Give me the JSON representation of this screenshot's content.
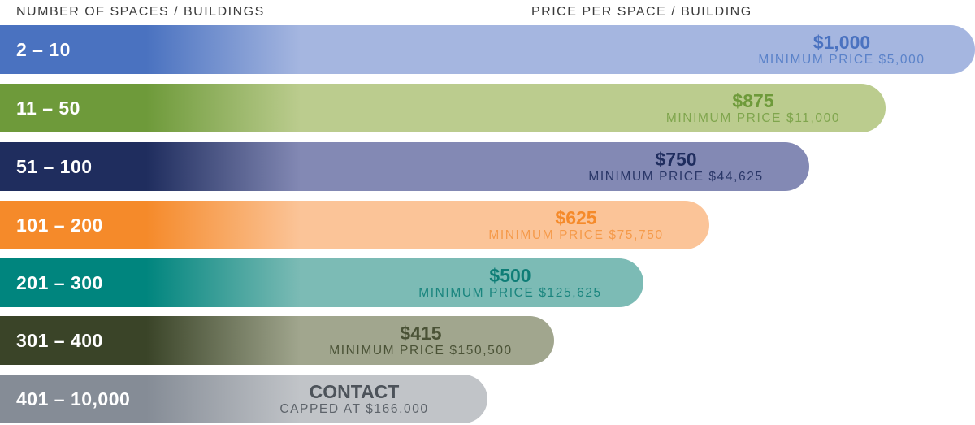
{
  "chart_data": {
    "type": "bar",
    "orientation": "horizontal",
    "xlabel": "NUMBER OF SPACES / BUILDINGS",
    "ylabel": "PRICE PER SPACE / BUILDING",
    "categories": [
      "2 – 10",
      "11 – 50",
      "51 – 100",
      "101 – 200",
      "201 – 300",
      "301 – 400",
      "401 – 10,000"
    ],
    "values": [
      1000,
      875,
      750,
      625,
      500,
      415,
      null
    ],
    "rows": [
      {
        "range": "2 – 10",
        "price": "$1,000",
        "minimum": "MINIMUM PRICE $5,000",
        "color": "#4a72c0",
        "light": "#a5b6e0",
        "text_color": "#4a72c0",
        "sub_color": "#5a82c9"
      },
      {
        "range": "11 – 50",
        "price": "$875",
        "minimum": "MINIMUM PRICE $11,000",
        "color": "#6e9a3a",
        "light": "#bbcc8e",
        "text_color": "#6e9a3a",
        "sub_color": "#7fa54d"
      },
      {
        "range": "51 – 100",
        "price": "$750",
        "minimum": "MINIMUM PRICE $44,625",
        "color": "#1f2d5e",
        "light": "#8389b4",
        "text_color": "#1f2d5e",
        "sub_color": "#2a3768"
      },
      {
        "range": "101 – 200",
        "price": "$625",
        "minimum": "MINIMUM PRICE $75,750",
        "color": "#f58a2a",
        "light": "#fbc498",
        "text_color": "#f58a2a",
        "sub_color": "#f59a4a"
      },
      {
        "range": "201 – 300",
        "price": "$500",
        "minimum": "MINIMUM PRICE $125,625",
        "color": "#00857e",
        "light": "#7cbbb5",
        "text_color": "#0e7d76",
        "sub_color": "#1a857e"
      },
      {
        "range": "301 – 400",
        "price": "$415",
        "minimum": "MINIMUM PRICE $150,500",
        "color": "#3a4428",
        "light": "#a1a68e",
        "text_color": "#4a5236",
        "sub_color": "#4a5236"
      },
      {
        "range": "401 – 10,000",
        "price": "CONTACT",
        "minimum": "CAPPED AT $166,000",
        "color": "#858c96",
        "light": "#c1c4c8",
        "text_color": "#4d535a",
        "sub_color": "#5d636a"
      }
    ]
  }
}
